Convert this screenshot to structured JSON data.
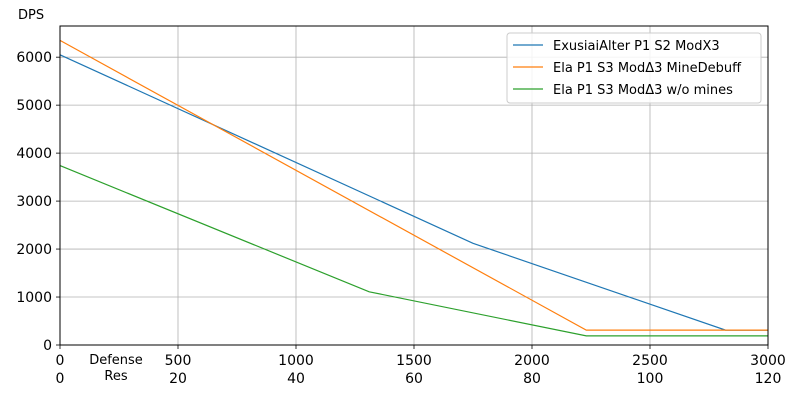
{
  "chart_data": {
    "type": "line",
    "ylabel": "DPS",
    "x_axis_labels": [
      "Defense",
      "Res"
    ],
    "xlim": [
      0,
      3000
    ],
    "ylim": [
      0,
      6650
    ],
    "x_ticks": [
      0,
      500,
      1000,
      1500,
      2000,
      2500,
      3000
    ],
    "x_ticks_secondary": [
      0,
      20,
      40,
      60,
      80,
      100,
      120
    ],
    "y_ticks": [
      0,
      1000,
      2000,
      3000,
      4000,
      5000,
      6000
    ],
    "grid": true,
    "legend_position": "top-right",
    "series": [
      {
        "name": "ExusiaiAlter P1 S2 ModX3",
        "color": "#1f77b4",
        "x": [
          0,
          1750,
          2820,
          3000
        ],
        "y": [
          6050,
          2120,
          310,
          310
        ]
      },
      {
        "name": "Ela P1 S3 ModΔ3 MineDebuff",
        "color": "#ff7f0e",
        "x": [
          0,
          2230,
          3000
        ],
        "y": [
          6350,
          310,
          310
        ]
      },
      {
        "name": "Ela P1 S3 ModΔ3 w/o mines",
        "color": "#2ca02c",
        "x": [
          0,
          1310,
          2230,
          3000
        ],
        "y": [
          3740,
          1110,
          190,
          190
        ]
      }
    ]
  }
}
